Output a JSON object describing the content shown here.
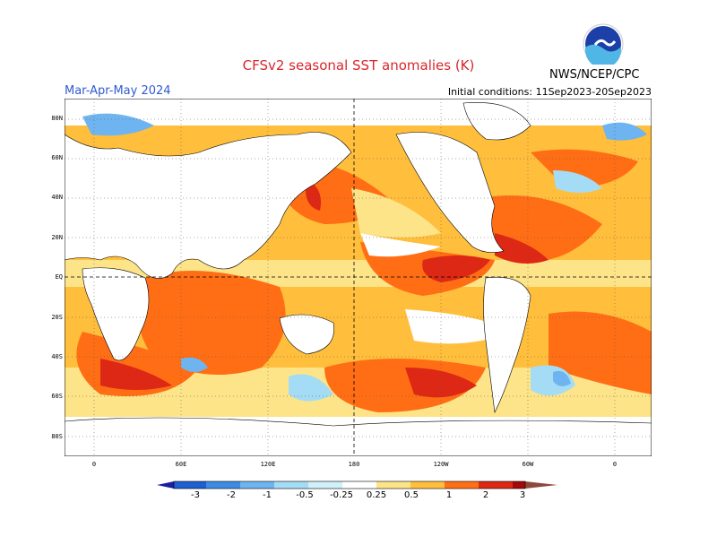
{
  "header": {
    "title": "CFSv2 seasonal SST anomalies (K)",
    "period": "Mar-Apr-May 2024",
    "initial_conditions": "Initial conditions: 11Sep2023-20Sep2023",
    "agency": "NWS/NCEP/CPC",
    "logo_text": "NOAA"
  },
  "map": {
    "lat_labels": [
      "80N",
      "60N",
      "40N",
      "20N",
      "EQ",
      "20S",
      "40S",
      "60S",
      "80S"
    ],
    "lon_labels": [
      "0",
      "60E",
      "120E",
      "180",
      "120W",
      "60W",
      "0"
    ],
    "grid": "dotted",
    "reference_lines": [
      "EQ",
      "180"
    ]
  },
  "colorbar": {
    "labels": [
      "-3",
      "-2",
      "-1",
      "-0.5",
      "-0.25",
      "0.25",
      "0.5",
      "1",
      "2",
      "3"
    ],
    "colors": [
      "#1e1ea0",
      "#1e5fd2",
      "#3c8ce6",
      "#6eb4f0",
      "#a5dcf5",
      "#ffffff",
      "#fde488",
      "#ffbe3c",
      "#ff6e14",
      "#dc2814",
      "#a50a0a",
      "#8b4a3c"
    ]
  }
}
